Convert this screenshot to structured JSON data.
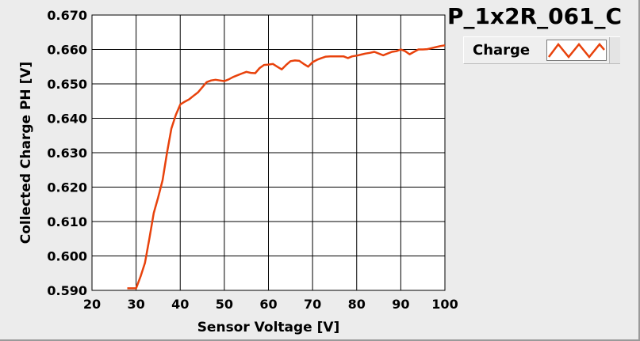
{
  "title": "P_1x2R_061_C",
  "legend": {
    "label": "Charge",
    "icon": "zigzag-line-icon"
  },
  "chart_data": {
    "type": "line",
    "xlabel": "Sensor Voltage [V]",
    "ylabel": "Collected Charge PH [V]",
    "xlim": [
      20,
      100
    ],
    "ylim": [
      0.59,
      0.67
    ],
    "xticks": [
      "20",
      "30",
      "40",
      "50",
      "60",
      "70",
      "80",
      "90",
      "100"
    ],
    "yticks": [
      "0.590",
      "0.600",
      "0.610",
      "0.620",
      "0.630",
      "0.640",
      "0.650",
      "0.660",
      "0.670"
    ],
    "grid": true,
    "legend_position": "top-right",
    "colors": {
      "series": "#e8420c",
      "plot_bg": "#ffffff",
      "grid": "#000000",
      "frame_bg": "#ececec"
    },
    "series": [
      {
        "name": "Charge",
        "x": [
          28,
          29,
          30,
          31,
          32,
          33,
          34,
          35,
          36,
          37,
          38,
          39,
          40,
          41,
          42,
          43,
          44,
          45,
          46,
          47,
          48,
          49,
          50,
          51,
          52,
          53,
          54,
          55,
          56,
          57,
          58,
          59,
          60,
          61,
          62,
          63,
          64,
          65,
          66,
          67,
          68,
          69,
          70,
          71,
          72,
          73,
          74,
          75,
          76,
          77,
          78,
          79,
          80,
          81,
          82,
          83,
          84,
          85,
          86,
          87,
          88,
          89,
          90,
          91,
          92,
          93,
          94,
          95,
          96,
          97,
          98,
          99,
          100
        ],
        "y": [
          0.5906,
          0.5906,
          0.5906,
          0.594,
          0.598,
          0.605,
          0.6125,
          0.617,
          0.622,
          0.63,
          0.637,
          0.641,
          0.644,
          0.6448,
          0.6455,
          0.6465,
          0.6475,
          0.649,
          0.6505,
          0.651,
          0.6512,
          0.651,
          0.6508,
          0.6513,
          0.652,
          0.6525,
          0.653,
          0.6535,
          0.6532,
          0.6531,
          0.6546,
          0.6555,
          0.6556,
          0.6558,
          0.655,
          0.6542,
          0.6555,
          0.6566,
          0.6568,
          0.6567,
          0.6558,
          0.655,
          0.6563,
          0.657,
          0.6575,
          0.6579,
          0.658,
          0.658,
          0.658,
          0.658,
          0.6575,
          0.658,
          0.6582,
          0.6585,
          0.6588,
          0.659,
          0.6593,
          0.6588,
          0.6583,
          0.6588,
          0.6593,
          0.6595,
          0.66,
          0.6595,
          0.6586,
          0.6593,
          0.66,
          0.66,
          0.6601,
          0.6604,
          0.6607,
          0.661,
          0.6612
        ]
      }
    ]
  }
}
